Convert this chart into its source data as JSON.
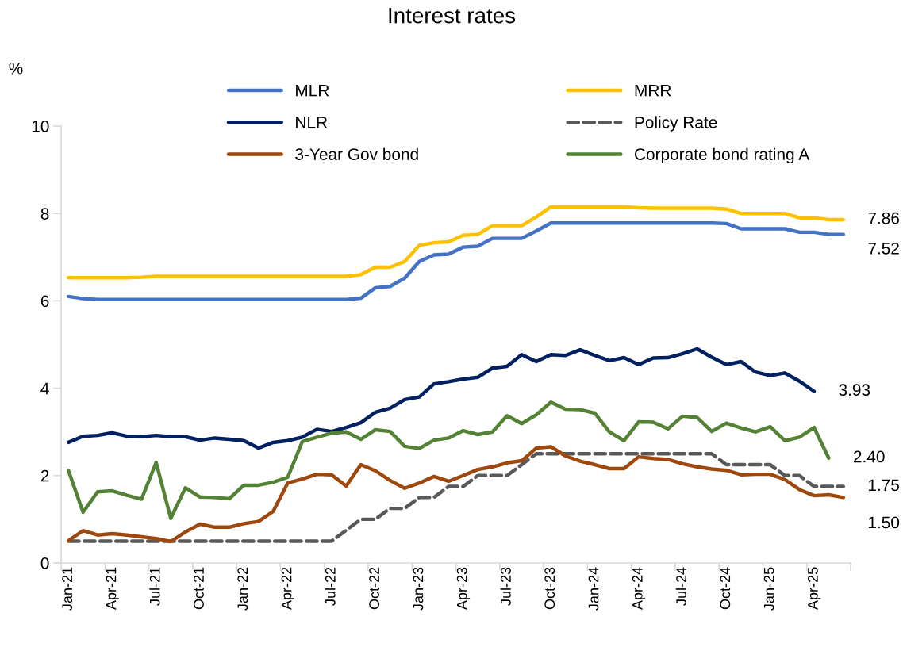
{
  "chart_data": {
    "type": "line",
    "title": "Interest rates",
    "ylabel": "%",
    "categories": [
      "Jan-21",
      null,
      null,
      "Apr-21",
      null,
      null,
      "Jul-21",
      null,
      null,
      "Oct-21",
      null,
      null,
      "Jan-22",
      null,
      null,
      "Apr-22",
      null,
      null,
      "Jul-22",
      null,
      null,
      "Oct-22",
      null,
      null,
      "Jan-23",
      null,
      null,
      "Apr-23",
      null,
      null,
      "Jul-23",
      null,
      null,
      "Oct-23",
      null,
      null,
      "Jan-24",
      null,
      null,
      "Apr-24",
      null,
      null,
      "Jul-24",
      null,
      null,
      "Oct-24",
      null,
      null,
      "Jan-25",
      null,
      null,
      "Apr-25",
      null,
      null
    ],
    "ylim": [
      0,
      10
    ],
    "yticks": [
      0,
      2,
      4,
      6,
      8,
      10
    ],
    "grid": false,
    "legend": "top",
    "marker": "none",
    "series": [
      {
        "name": "MLR",
        "color": "#4472c4",
        "values": [
          6.1,
          6.05,
          6.03,
          6.03,
          6.03,
          6.03,
          6.03,
          6.03,
          6.03,
          6.03,
          6.03,
          6.03,
          6.03,
          6.03,
          6.03,
          6.03,
          6.03,
          6.03,
          6.03,
          6.03,
          6.06,
          6.3,
          6.33,
          6.52,
          6.9,
          7.05,
          7.07,
          7.23,
          7.25,
          7.43,
          7.43,
          7.43,
          7.6,
          7.78,
          7.78,
          7.78,
          7.78,
          7.78,
          7.78,
          7.78,
          7.78,
          7.78,
          7.78,
          7.78,
          7.78,
          7.77,
          7.65,
          7.65,
          7.65,
          7.65,
          7.57,
          7.57,
          7.52,
          7.52
        ],
        "value_labels": [
          null,
          null,
          null,
          null,
          null,
          null,
          null,
          null,
          null,
          null,
          null,
          null,
          null,
          null,
          null,
          null,
          null,
          null,
          null,
          null,
          null,
          null,
          null,
          null,
          null,
          null,
          null,
          null,
          null,
          null,
          null,
          null,
          null,
          null,
          null,
          null,
          null,
          null,
          null,
          null,
          null,
          null,
          null,
          null,
          null,
          null,
          null,
          null,
          null,
          null,
          null,
          null,
          null,
          "7.52"
        ]
      },
      {
        "name": "MRR",
        "color": "#ffc000",
        "values": [
          6.53,
          6.53,
          6.53,
          6.53,
          6.53,
          6.54,
          6.56,
          6.56,
          6.56,
          6.56,
          6.56,
          6.56,
          6.56,
          6.56,
          6.56,
          6.56,
          6.56,
          6.56,
          6.56,
          6.56,
          6.6,
          6.77,
          6.77,
          6.9,
          7.27,
          7.33,
          7.35,
          7.5,
          7.52,
          7.72,
          7.72,
          7.72,
          7.92,
          8.15,
          8.15,
          8.15,
          8.15,
          8.15,
          8.15,
          8.13,
          8.12,
          8.12,
          8.12,
          8.12,
          8.12,
          8.1,
          8.0,
          8.0,
          8.0,
          8.0,
          7.9,
          7.9,
          7.86,
          7.86
        ],
        "value_labels": [
          null,
          null,
          null,
          null,
          null,
          null,
          null,
          null,
          null,
          null,
          null,
          null,
          null,
          null,
          null,
          null,
          null,
          null,
          null,
          null,
          null,
          null,
          null,
          null,
          null,
          null,
          null,
          null,
          null,
          null,
          null,
          null,
          null,
          null,
          null,
          null,
          null,
          null,
          null,
          null,
          null,
          null,
          null,
          null,
          null,
          null,
          null,
          null,
          null,
          null,
          null,
          null,
          null,
          "7.86"
        ]
      },
      {
        "name": "NLR",
        "color": "#002060",
        "values": [
          2.76,
          2.9,
          2.92,
          2.98,
          2.9,
          2.89,
          2.92,
          2.89,
          2.89,
          2.81,
          2.86,
          2.83,
          2.8,
          2.63,
          2.76,
          2.8,
          2.88,
          3.06,
          3.01,
          3.1,
          3.21,
          3.45,
          3.54,
          3.74,
          3.8,
          4.1,
          4.15,
          4.21,
          4.25,
          4.46,
          4.5,
          4.77,
          4.61,
          4.77,
          4.75,
          4.88,
          4.75,
          4.63,
          4.7,
          4.54,
          4.69,
          4.7,
          4.79,
          4.9,
          4.71,
          4.54,
          4.61,
          4.37,
          4.29,
          4.35,
          4.16,
          3.93,
          null,
          null
        ],
        "value_labels": [
          null,
          null,
          null,
          null,
          null,
          null,
          null,
          null,
          null,
          null,
          null,
          null,
          null,
          null,
          null,
          null,
          null,
          null,
          null,
          null,
          null,
          null,
          null,
          null,
          null,
          null,
          null,
          null,
          null,
          null,
          null,
          null,
          null,
          null,
          null,
          null,
          null,
          null,
          null,
          null,
          null,
          null,
          null,
          null,
          null,
          null,
          null,
          null,
          null,
          null,
          null,
          "3.93",
          null,
          null
        ]
      },
      {
        "name": "Policy Rate",
        "color": "#595959",
        "line_style": "dashed",
        "values": [
          0.5,
          0.5,
          0.5,
          0.5,
          0.5,
          0.5,
          0.5,
          0.5,
          0.5,
          0.5,
          0.5,
          0.5,
          0.5,
          0.5,
          0.5,
          0.5,
          0.5,
          0.5,
          0.5,
          0.75,
          1.0,
          1.0,
          1.25,
          1.25,
          1.5,
          1.5,
          1.75,
          1.75,
          2.0,
          2.0,
          2.0,
          2.25,
          2.5,
          2.5,
          2.5,
          2.5,
          2.5,
          2.5,
          2.5,
          2.5,
          2.5,
          2.5,
          2.5,
          2.5,
          2.5,
          2.25,
          2.25,
          2.25,
          2.25,
          2.0,
          2.0,
          1.75,
          1.75,
          1.75
        ],
        "value_labels": [
          null,
          null,
          null,
          null,
          null,
          null,
          null,
          null,
          null,
          null,
          null,
          null,
          null,
          null,
          null,
          null,
          null,
          null,
          null,
          null,
          null,
          null,
          null,
          null,
          null,
          null,
          null,
          null,
          null,
          null,
          null,
          null,
          null,
          null,
          null,
          null,
          null,
          null,
          null,
          null,
          null,
          null,
          null,
          null,
          null,
          null,
          null,
          null,
          null,
          null,
          null,
          null,
          null,
          "1.75"
        ]
      },
      {
        "name": "3-Year Gov bond",
        "color": "#9e480e",
        "values": [
          0.51,
          0.74,
          0.64,
          0.67,
          0.64,
          0.6,
          0.56,
          0.49,
          0.71,
          0.89,
          0.82,
          0.82,
          0.9,
          0.95,
          1.18,
          1.83,
          1.92,
          2.03,
          2.02,
          1.76,
          2.25,
          2.11,
          1.89,
          1.71,
          1.83,
          1.98,
          1.87,
          2.0,
          2.14,
          2.2,
          2.29,
          2.34,
          2.63,
          2.66,
          2.45,
          2.33,
          2.25,
          2.16,
          2.16,
          2.43,
          2.39,
          2.37,
          2.27,
          2.2,
          2.15,
          2.12,
          2.02,
          2.03,
          2.03,
          1.91,
          1.68,
          1.54,
          1.56,
          1.5
        ],
        "value_labels": [
          null,
          null,
          null,
          null,
          null,
          null,
          null,
          null,
          null,
          null,
          null,
          null,
          null,
          null,
          null,
          null,
          null,
          null,
          null,
          null,
          null,
          null,
          null,
          null,
          null,
          null,
          null,
          null,
          null,
          null,
          null,
          null,
          null,
          null,
          null,
          null,
          null,
          null,
          null,
          null,
          null,
          null,
          null,
          null,
          null,
          null,
          null,
          null,
          null,
          null,
          null,
          null,
          null,
          "1.50"
        ]
      },
      {
        "name": "Corporate bond rating A",
        "color": "#548235",
        "values": [
          2.12,
          1.16,
          1.63,
          1.65,
          1.55,
          1.46,
          2.3,
          1.02,
          1.72,
          1.51,
          1.5,
          1.47,
          1.78,
          1.78,
          1.85,
          1.96,
          2.78,
          2.88,
          2.97,
          3.0,
          2.83,
          3.05,
          3.01,
          2.67,
          2.62,
          2.81,
          2.86,
          3.03,
          2.94,
          3.0,
          3.37,
          3.19,
          3.39,
          3.68,
          3.52,
          3.51,
          3.43,
          3.0,
          2.8,
          3.23,
          3.22,
          3.07,
          3.36,
          3.33,
          3.01,
          3.2,
          3.09,
          3.0,
          3.12,
          2.8,
          2.88,
          3.1,
          2.4,
          null
        ],
        "value_labels": [
          null,
          null,
          null,
          null,
          null,
          null,
          null,
          null,
          null,
          null,
          null,
          null,
          null,
          null,
          null,
          null,
          null,
          null,
          null,
          null,
          null,
          null,
          null,
          null,
          null,
          null,
          null,
          null,
          null,
          null,
          null,
          null,
          null,
          null,
          null,
          null,
          null,
          null,
          null,
          null,
          null,
          null,
          null,
          null,
          null,
          null,
          null,
          null,
          null,
          null,
          null,
          null,
          "2.40",
          null
        ]
      }
    ]
  }
}
